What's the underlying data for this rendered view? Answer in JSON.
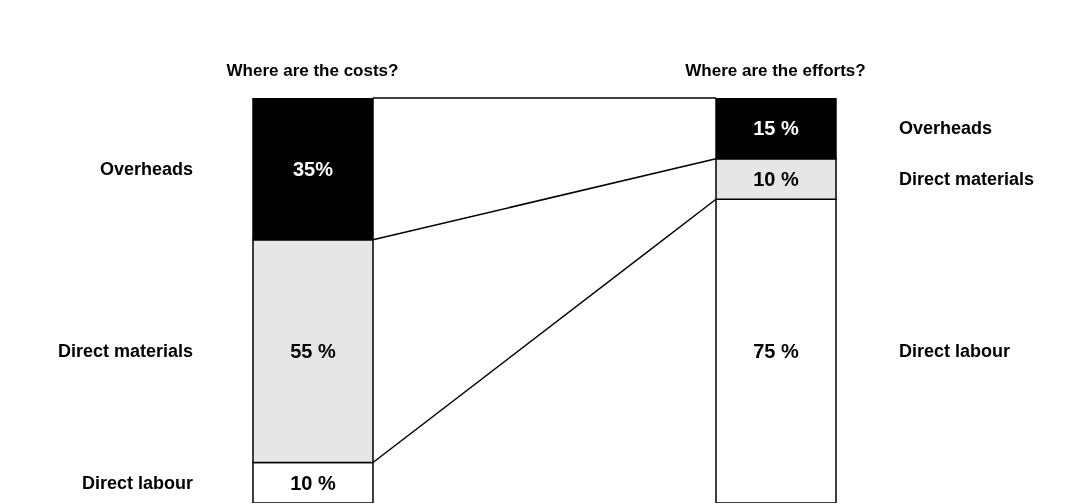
{
  "chart_data": {
    "type": "bar",
    "stacked": true,
    "categories": [
      "Where are the costs?",
      "Where are the efforts?"
    ],
    "series": [
      {
        "name": "Direct labour",
        "color": "#ffffff",
        "values": [
          10,
          75
        ],
        "value_labels": [
          "10 %",
          "75 %"
        ]
      },
      {
        "name": "Direct materials",
        "color": "#e6e6e6",
        "values": [
          55,
          10
        ],
        "value_labels": [
          "55 %",
          "10 %"
        ]
      },
      {
        "name": "Overheads",
        "color": "#000000",
        "values": [
          35,
          15
        ],
        "value_labels": [
          "35%",
          "15 %"
        ]
      }
    ]
  }
}
